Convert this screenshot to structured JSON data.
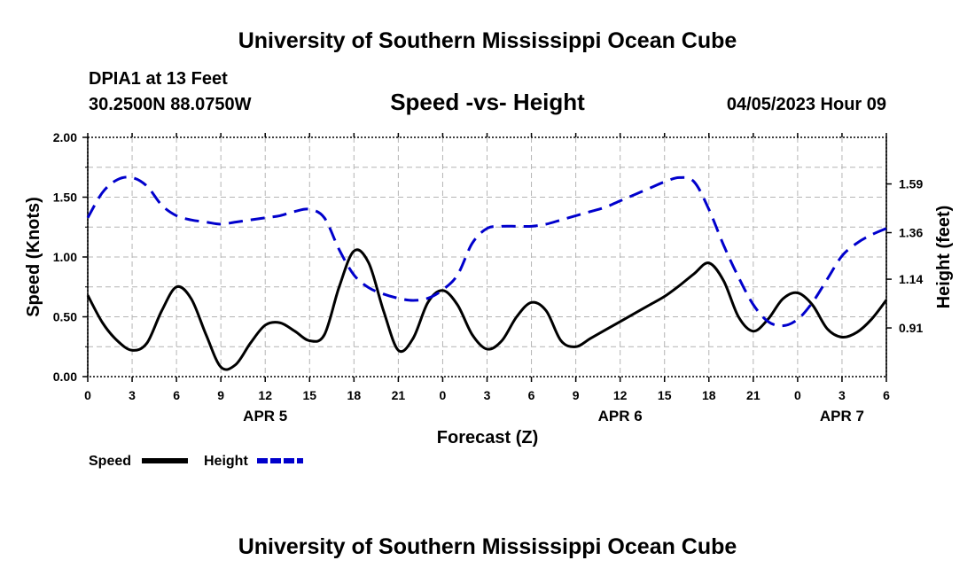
{
  "header": {
    "title": "University of Southern Mississippi Ocean Cube",
    "station": "DPIA1 at 13 Feet",
    "coords": "30.2500N  88.0750W",
    "subtitle": "Speed -vs- Height",
    "datetime": "04/05/2023 Hour 09"
  },
  "footer": {
    "title": "University of Southern Mississippi Ocean Cube"
  },
  "colors": {
    "speed": "#000000",
    "height": "#0000cc",
    "grid": "#b4b4b4"
  },
  "chart_data": {
    "type": "line",
    "xlabel": "Forecast (Z)",
    "ylabel": "Speed (Knots)",
    "y2label": "Height (feet)",
    "xlim": [
      0,
      54
    ],
    "ylim": [
      0,
      2.0
    ],
    "y2lim": [
      0.68,
      1.81
    ],
    "x_ticks": [
      0,
      3,
      6,
      9,
      12,
      15,
      18,
      21,
      24,
      27,
      30,
      33,
      36,
      39,
      42,
      45,
      48,
      51,
      54
    ],
    "x_tick_labels": [
      "0",
      "3",
      "6",
      "9",
      "12",
      "15",
      "18",
      "21",
      "0",
      "3",
      "6",
      "9",
      "12",
      "15",
      "18",
      "21",
      "0",
      "3",
      "6"
    ],
    "y_ticks": [
      0.0,
      0.5,
      1.0,
      1.5,
      2.0
    ],
    "y_tick_labels": [
      "0.00",
      "0.50",
      "1.00",
      "1.50",
      "2.00"
    ],
    "y2_ticks": [
      0.91,
      1.14,
      1.36,
      1.59
    ],
    "y2_tick_labels": [
      "0.91",
      "1.14",
      "1.36",
      "1.59"
    ],
    "date_labels": [
      {
        "x": 12,
        "label": "APR 5"
      },
      {
        "x": 36,
        "label": "APR 6"
      },
      {
        "x": 51,
        "label": "APR 7"
      }
    ],
    "series": [
      {
        "name": "Speed",
        "axis": "left",
        "style": "solid",
        "x": [
          0,
          1,
          2,
          3,
          4,
          5,
          6,
          7,
          8,
          9,
          10,
          11,
          12,
          13,
          14,
          15,
          16,
          17,
          18,
          19,
          20,
          21,
          22,
          23,
          24,
          25,
          26,
          27,
          28,
          29,
          30,
          31,
          32,
          33,
          34,
          35,
          36,
          37,
          38,
          39,
          40,
          41,
          42,
          43,
          44,
          45,
          46,
          47,
          48,
          49,
          50,
          51,
          52,
          53,
          54
        ],
        "values": [
          0.68,
          0.45,
          0.3,
          0.22,
          0.28,
          0.55,
          0.75,
          0.65,
          0.35,
          0.08,
          0.1,
          0.28,
          0.43,
          0.45,
          0.38,
          0.3,
          0.35,
          0.75,
          1.05,
          0.95,
          0.55,
          0.22,
          0.32,
          0.62,
          0.72,
          0.6,
          0.35,
          0.23,
          0.3,
          0.5,
          0.62,
          0.55,
          0.3,
          0.25,
          0.32,
          0.39,
          0.46,
          0.53,
          0.6,
          0.67,
          0.76,
          0.86,
          0.95,
          0.8,
          0.5,
          0.38,
          0.48,
          0.65,
          0.7,
          0.6,
          0.4,
          0.33,
          0.37,
          0.48,
          0.64
        ]
      },
      {
        "name": "Height",
        "axis": "right",
        "style": "dashed",
        "x": [
          0,
          1,
          2,
          3,
          4,
          5,
          6,
          7,
          8,
          9,
          10,
          11,
          12,
          13,
          14,
          15,
          16,
          17,
          18,
          19,
          20,
          21,
          22,
          23,
          24,
          25,
          26,
          27,
          28,
          29,
          30,
          31,
          32,
          33,
          34,
          35,
          36,
          37,
          38,
          39,
          40,
          41,
          42,
          43,
          44,
          45,
          46,
          47,
          48,
          49,
          50,
          51,
          52,
          53,
          54
        ],
        "values": [
          1.43,
          1.55,
          1.61,
          1.62,
          1.58,
          1.49,
          1.44,
          1.42,
          1.41,
          1.4,
          1.41,
          1.42,
          1.43,
          1.44,
          1.46,
          1.47,
          1.43,
          1.28,
          1.16,
          1.1,
          1.07,
          1.05,
          1.04,
          1.05,
          1.09,
          1.16,
          1.31,
          1.38,
          1.39,
          1.39,
          1.39,
          1.4,
          1.42,
          1.44,
          1.46,
          1.48,
          1.51,
          1.54,
          1.57,
          1.6,
          1.62,
          1.6,
          1.47,
          1.3,
          1.15,
          1.02,
          0.94,
          0.92,
          0.95,
          1.03,
          1.14,
          1.25,
          1.31,
          1.35,
          1.38
        ]
      }
    ],
    "legend": [
      {
        "label": "Speed",
        "style": "solid"
      },
      {
        "label": "Height",
        "style": "dashed"
      }
    ]
  }
}
